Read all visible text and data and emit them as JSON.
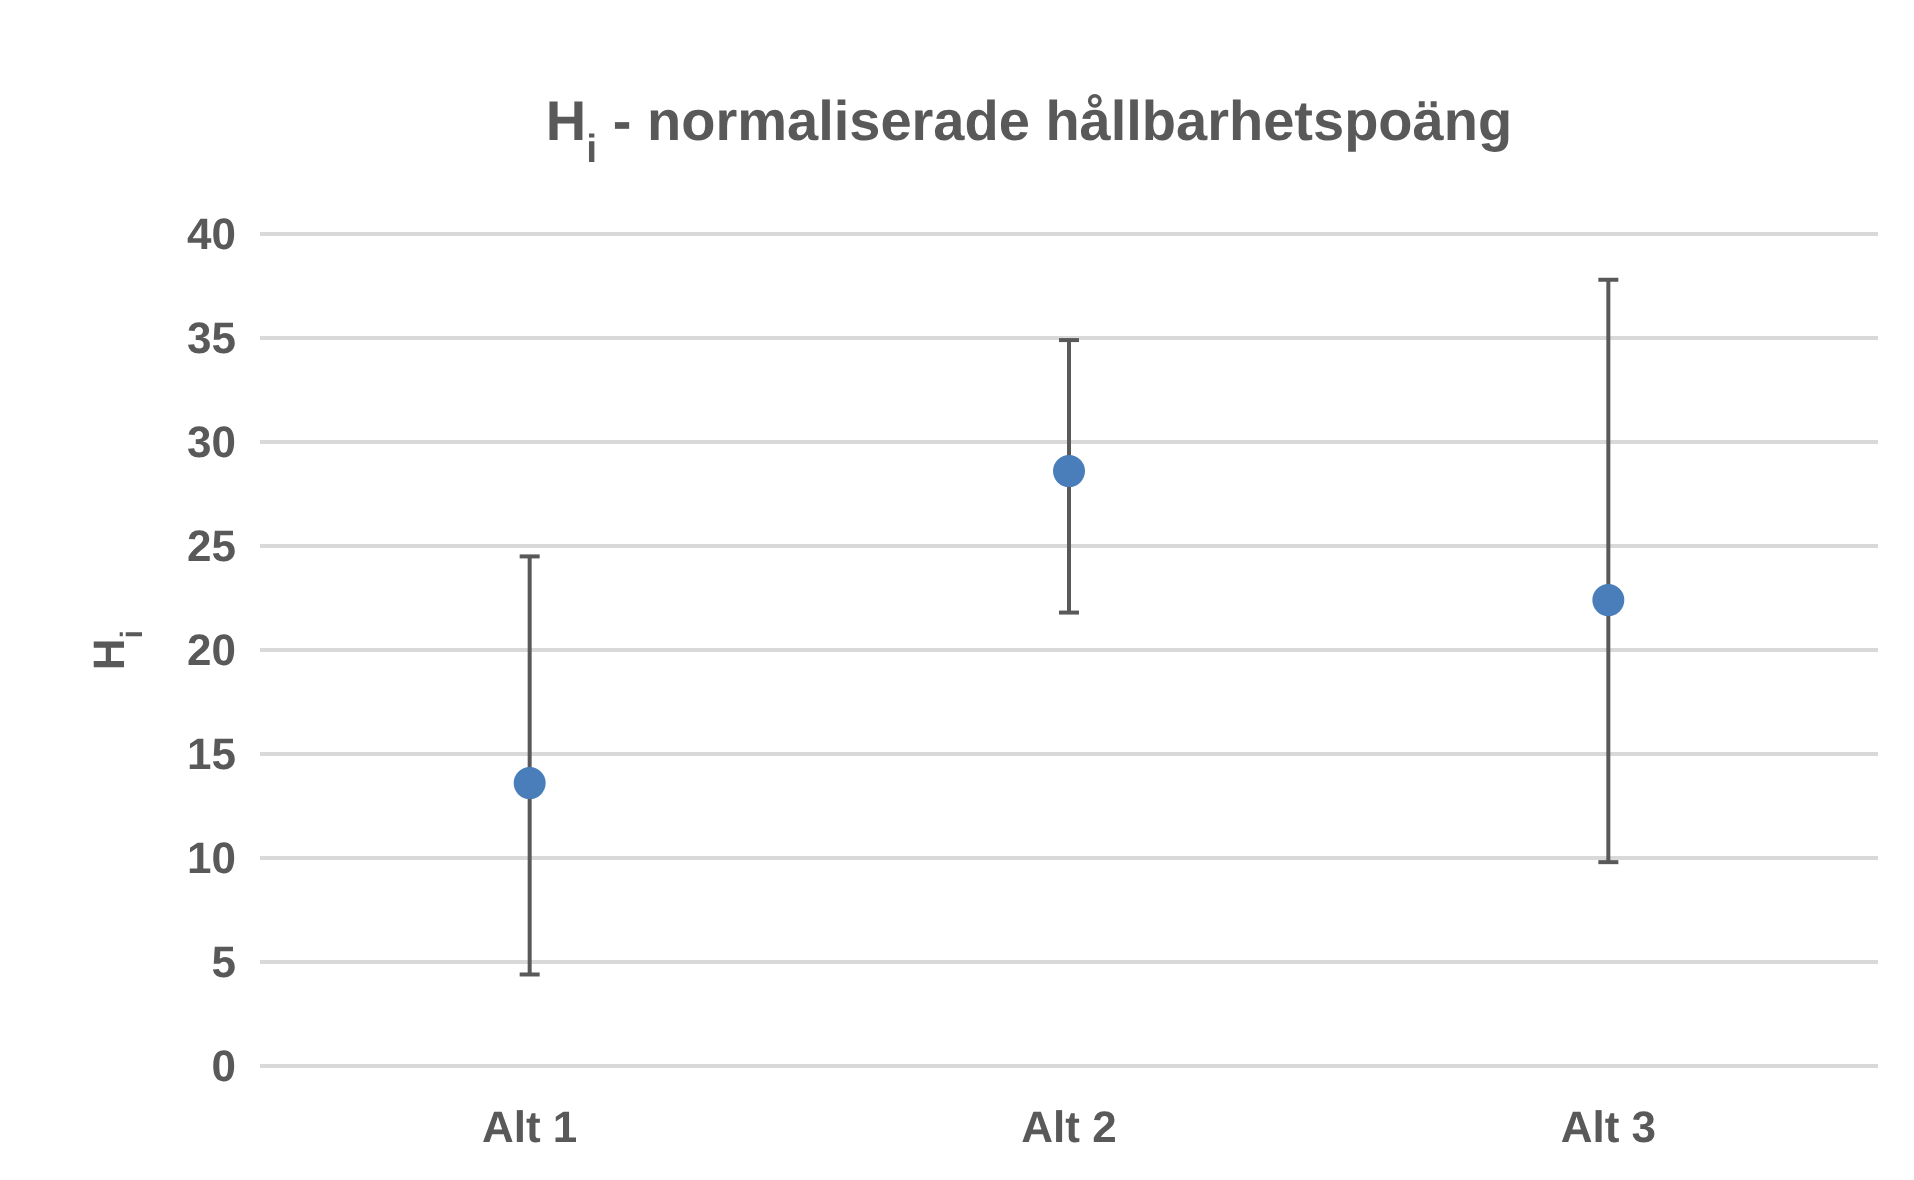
{
  "chart_data": {
    "type": "scatter",
    "title": "H$_{i}$ - normaliserade hållbarhetspoäng",
    "ylabel": "H$_{i}$",
    "categories": [
      "Alt 1",
      "Alt 2",
      "Alt 3"
    ],
    "values": [
      13.6,
      28.6,
      22.4
    ],
    "errors": [
      [
        4.4,
        24.5
      ],
      [
        21.8,
        34.9
      ],
      [
        9.8,
        37.8
      ]
    ],
    "color": "#4a7ebb",
    "marker": "circle",
    "grid": "y",
    "ylim": [
      0,
      40
    ],
    "yticks": [
      0,
      5,
      10,
      15,
      20,
      25,
      30,
      35,
      40
    ]
  }
}
